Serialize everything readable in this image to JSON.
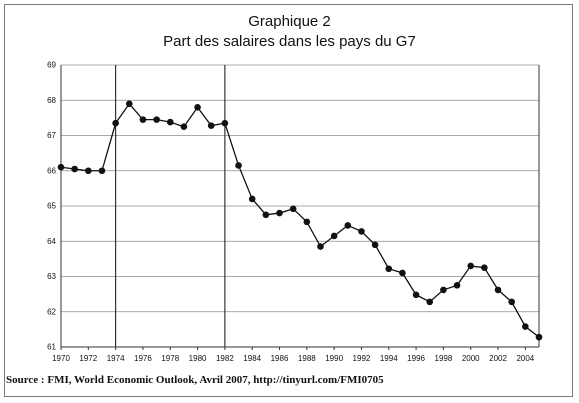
{
  "chart_data": {
    "type": "line",
    "title": "Graphique 2",
    "subtitle": "Part des salaires dans les pays du G7",
    "xlabel": "",
    "ylabel": "",
    "ylim": [
      61,
      69
    ],
    "xlim": [
      1970,
      2005
    ],
    "grid": true,
    "y_ticks": [
      "61",
      "62",
      "63",
      "64",
      "65",
      "66",
      "67",
      "68",
      "69"
    ],
    "x_ticks": [
      "1970",
      "1972",
      "1974",
      "1976",
      "1978",
      "1980",
      "1982",
      "1984",
      "1986",
      "1988",
      "1990",
      "1992",
      "1994",
      "1996",
      "1998",
      "2000",
      "2002",
      "2004"
    ],
    "vertical_markers": [
      1974,
      1982
    ],
    "series": [
      {
        "color": "#111111",
        "x": [
          1970,
          1971,
          1972,
          1973,
          1974,
          1975,
          1976,
          1977,
          1978,
          1979,
          1980,
          1981,
          1982,
          1983,
          1984,
          1985,
          1986,
          1987,
          1988,
          1989,
          1990,
          1991,
          1992,
          1993,
          1994,
          1995,
          1996,
          1997,
          1998,
          1999,
          2000,
          2001,
          2002,
          2003,
          2004,
          2005
        ],
        "values": [
          66.1,
          66.05,
          66.0,
          66.0,
          67.35,
          67.9,
          67.45,
          67.45,
          67.38,
          67.25,
          67.8,
          67.28,
          67.35,
          66.15,
          65.2,
          64.75,
          64.8,
          64.92,
          64.55,
          63.85,
          64.15,
          64.45,
          64.28,
          63.9,
          63.22,
          63.1,
          62.48,
          62.28,
          62.62,
          62.75,
          63.3,
          63.25,
          62.62,
          62.28,
          61.58,
          61.28
        ]
      }
    ]
  },
  "source": "Source : FMI, World Economic Outlook, Avril 2007, http://tinyurl.com/FMI0705"
}
